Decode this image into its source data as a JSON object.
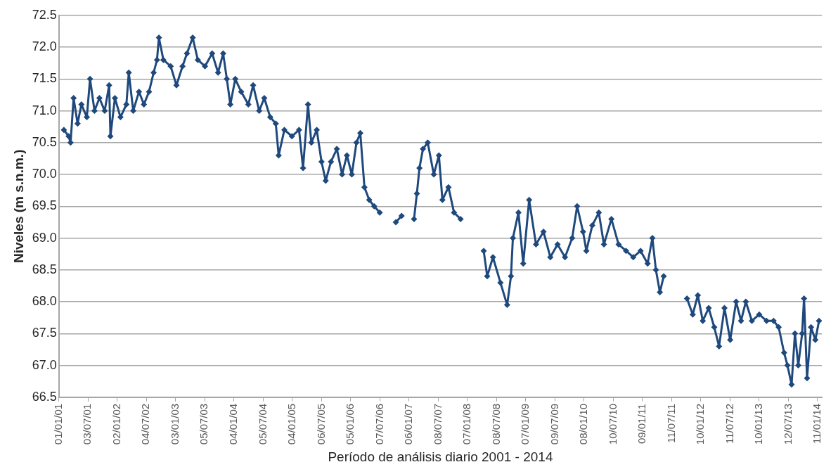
{
  "chart_data": {
    "type": "line",
    "xlabel": "Período de análisis diario 2001 - 2014",
    "ylabel": "Niveles (m s.n.m.)",
    "x": [
      "2001-02-01",
      "2001-03-03",
      "2001-03-15",
      "2001-04-03",
      "2001-04-28",
      "2001-05-22",
      "2001-06-25",
      "2001-07-15",
      "2001-08-12",
      "2001-09-12",
      "2001-10-15",
      "2001-11-12",
      "2001-11-20",
      "2001-12-18",
      "2002-01-22",
      "2002-02-28",
      "2002-03-15",
      "2002-04-12",
      "2002-05-18",
      "2002-06-18",
      "2002-07-20",
      "2002-08-18",
      "2002-09-08",
      "2002-09-20",
      "2002-10-18",
      "2002-12-03",
      "2003-01-08",
      "2003-02-15",
      "2003-03-15",
      "2003-04-20",
      "2003-05-22",
      "2003-07-06",
      "2003-08-20",
      "2003-09-26",
      "2003-10-28",
      "2003-11-20",
      "2003-12-12",
      "2004-01-12",
      "2004-02-18",
      "2004-04-03",
      "2004-05-03",
      "2004-06-10",
      "2004-07-12",
      "2004-08-18",
      "2004-09-22",
      "2004-10-10",
      "2004-11-15",
      "2005-01-01",
      "2005-02-15",
      "2005-03-12",
      "2005-04-12",
      "2005-05-03",
      "2005-06-06",
      "2005-07-06",
      "2005-08-01",
      "2005-09-03",
      "2005-10-10",
      "2005-11-12",
      "2005-12-12",
      "2006-01-12",
      "2006-02-10",
      "2006-03-06",
      "2006-04-01",
      "2006-05-01",
      "2006-06-01",
      "2006-07-06",
      "2006-10-01",
      "2006-10-15",
      "2006-11-20",
      "2007-01-01",
      "2007-02-06",
      "2007-02-24",
      "2007-03-12",
      "2007-04-03",
      "2007-05-03",
      "2007-06-10",
      "2007-07-12",
      "2007-08-03",
      "2007-09-10",
      "2007-10-15",
      "2007-11-25",
      "2008-02-01",
      "2008-04-18",
      "2008-05-10",
      "2008-06-15",
      "2008-08-01",
      "2008-09-12",
      "2008-10-06",
      "2008-10-18",
      "2008-11-22",
      "2008-12-22",
      "2009-01-28",
      "2009-03-12",
      "2009-04-28",
      "2009-06-10",
      "2009-07-25",
      "2009-09-10",
      "2009-10-25",
      "2009-11-25",
      "2010-01-01",
      "2010-01-22",
      "2010-02-28",
      "2010-04-10",
      "2010-05-12",
      "2010-06-28",
      "2010-08-12",
      "2010-09-28",
      "2010-11-12",
      "2010-12-28",
      "2011-02-10",
      "2011-03-12",
      "2011-04-03",
      "2011-04-28",
      "2011-05-22",
      "2011-09-01",
      "2011-10-15",
      "2011-11-20",
      "2011-12-22",
      "2012-01-22",
      "2012-02-28",
      "2012-04-03",
      "2012-05-03",
      "2012-06-06",
      "2012-07-12",
      "2012-08-18",
      "2012-09-18",
      "2012-10-18",
      "2012-11-25",
      "2013-01-10",
      "2013-02-25",
      "2013-04-10",
      "2013-05-12",
      "2013-06-15",
      "2013-07-06",
      "2013-08-01",
      "2013-08-22",
      "2013-09-12",
      "2013-10-06",
      "2013-10-18",
      "2013-11-06",
      "2013-12-01",
      "2013-12-28",
      "2014-01-20"
    ],
    "series": [
      {
        "color": "#1f497d",
        "values": [
          70.7,
          70.6,
          70.5,
          71.2,
          70.8,
          71.1,
          70.9,
          71.5,
          71.0,
          71.2,
          71.0,
          71.4,
          70.6,
          71.2,
          70.9,
          71.1,
          71.6,
          71.0,
          71.3,
          71.1,
          71.3,
          71.6,
          71.8,
          72.15,
          71.8,
          71.7,
          71.4,
          71.7,
          71.9,
          72.15,
          71.8,
          71.7,
          71.9,
          71.6,
          71.9,
          71.5,
          71.1,
          71.5,
          71.3,
          71.1,
          71.4,
          71.0,
          71.2,
          70.9,
          70.8,
          70.3,
          70.7,
          70.6,
          70.7,
          70.1,
          71.1,
          70.5,
          70.7,
          70.2,
          69.9,
          70.2,
          70.4,
          70.0,
          70.3,
          70.0,
          70.5,
          70.65,
          69.8,
          69.6,
          69.5,
          69.4,
          null,
          69.25,
          69.35,
          null,
          69.3,
          69.7,
          70.1,
          70.4,
          70.5,
          70.0,
          70.3,
          69.6,
          69.8,
          69.4,
          69.3,
          null,
          68.8,
          68.4,
          68.7,
          68.3,
          67.95,
          68.4,
          69.0,
          69.4,
          68.6,
          69.6,
          68.9,
          69.1,
          68.7,
          68.9,
          68.7,
          69.0,
          69.5,
          69.1,
          68.8,
          69.2,
          69.4,
          68.9,
          69.3,
          68.9,
          68.8,
          68.7,
          68.8,
          68.6,
          69.0,
          68.5,
          68.15,
          68.4,
          null,
          68.05,
          67.8,
          68.1,
          67.7,
          67.9,
          67.6,
          67.3,
          67.9,
          67.4,
          68.0,
          67.7,
          68.0,
          67.7,
          67.8,
          67.7,
          67.7,
          67.6,
          67.2,
          67.0,
          66.7,
          67.5,
          67.0,
          67.5,
          68.05,
          66.8,
          67.6,
          67.4,
          67.7
        ]
      }
    ],
    "xlim": [
      "2001-01-01",
      "2014-02-07"
    ],
    "xticks": [
      {
        "value": "2001-01-01",
        "label": "01/01/01"
      },
      {
        "value": "2001-07-03",
        "label": "03/07/01"
      },
      {
        "value": "2002-01-02",
        "label": "02/01/02"
      },
      {
        "value": "2002-07-04",
        "label": "04/07/02"
      },
      {
        "value": "2003-01-03",
        "label": "03/01/03"
      },
      {
        "value": "2003-07-05",
        "label": "05/07/03"
      },
      {
        "value": "2004-01-04",
        "label": "04/01/04"
      },
      {
        "value": "2004-07-05",
        "label": "05/07/04"
      },
      {
        "value": "2005-01-04",
        "label": "04/01/05"
      },
      {
        "value": "2005-07-06",
        "label": "06/07/05"
      },
      {
        "value": "2006-01-05",
        "label": "05/01/06"
      },
      {
        "value": "2006-07-07",
        "label": "07/07/06"
      },
      {
        "value": "2007-01-06",
        "label": "06/01/07"
      },
      {
        "value": "2007-07-08",
        "label": "08/07/07"
      },
      {
        "value": "2008-01-07",
        "label": "07/01/08"
      },
      {
        "value": "2008-07-08",
        "label": "08/07/08"
      },
      {
        "value": "2009-01-07",
        "label": "07/01/09"
      },
      {
        "value": "2009-07-09",
        "label": "09/07/09"
      },
      {
        "value": "2010-01-08",
        "label": "08/01/10"
      },
      {
        "value": "2010-07-10",
        "label": "10/07/10"
      },
      {
        "value": "2011-01-09",
        "label": "09/01/11"
      },
      {
        "value": "2011-07-11",
        "label": "11/07/11"
      },
      {
        "value": "2012-01-10",
        "label": "10/01/12"
      },
      {
        "value": "2012-07-11",
        "label": "11/07/12"
      },
      {
        "value": "2013-01-10",
        "label": "10/01/13"
      },
      {
        "value": "2013-07-12",
        "label": "12/07/13"
      },
      {
        "value": "2014-01-11",
        "label": "11/01/14"
      }
    ],
    "ylim": [
      66.5,
      72.5
    ],
    "yticks": [
      66.5,
      {
        "value": 67,
        "label": "67.0"
      },
      67.5,
      {
        "value": 68,
        "label": "68.0"
      },
      68.5,
      {
        "value": 69,
        "label": "69.0"
      },
      69.5,
      {
        "value": 70,
        "label": "70.0"
      },
      70.5,
      {
        "value": 71,
        "label": "71.0"
      },
      71.5,
      {
        "value": 72,
        "label": "72.0"
      },
      72.5
    ],
    "grid": "y",
    "marker": "diamond",
    "line_style": "solid"
  }
}
